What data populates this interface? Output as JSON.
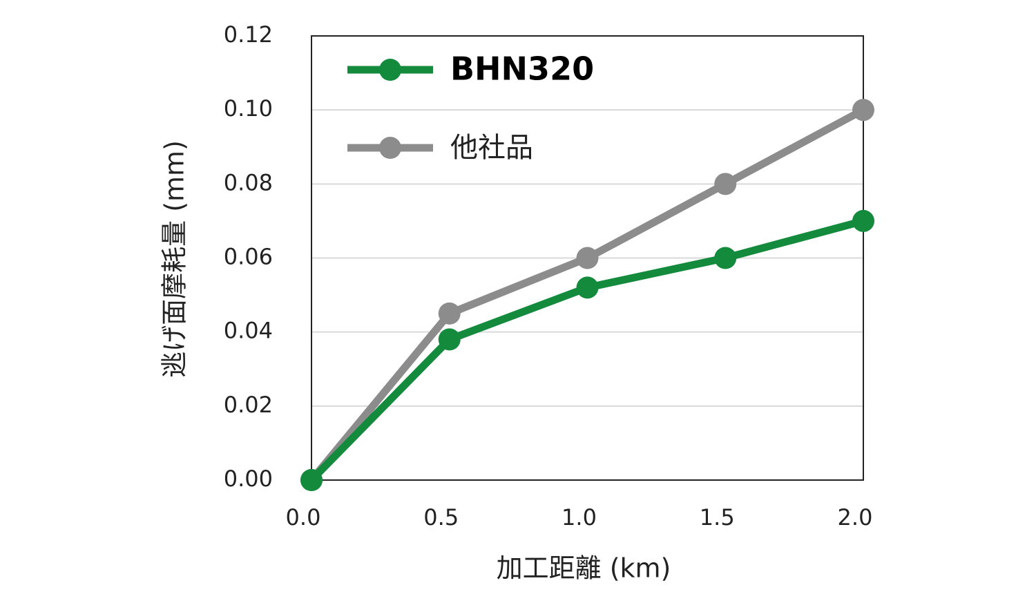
{
  "chart_data": {
    "type": "line",
    "x_label": "加工距離 (km)",
    "y_label": "逃げ面摩耗量 (mm)",
    "x": [
      0,
      0.5,
      1.0,
      1.5,
      2.0
    ],
    "series": [
      {
        "name": "BHN320",
        "color": "#138a3c",
        "values": [
          0,
          0.038,
          0.052,
          0.06,
          0.07
        ]
      },
      {
        "name": "他社品",
        "color": "#8c8c8c",
        "values": [
          0,
          0.045,
          0.06,
          0.08,
          0.1
        ]
      }
    ],
    "xlim": [
      0,
      2.0
    ],
    "ylim": [
      0,
      0.12
    ],
    "xticks": [
      {
        "value": 0,
        "label": "0.0"
      },
      {
        "value": 0.5,
        "label": "0.5"
      },
      {
        "value": 1.0,
        "label": "1.0"
      },
      {
        "value": 1.5,
        "label": "1.5"
      },
      {
        "value": 2.0,
        "label": "2.0"
      }
    ],
    "yticks": [
      {
        "value": 0,
        "label": "0.00"
      },
      {
        "value": 0.02,
        "label": "0.02"
      },
      {
        "value": 0.04,
        "label": "0.04"
      },
      {
        "value": 0.06,
        "label": "0.06"
      },
      {
        "value": 0.08,
        "label": "0.08"
      },
      {
        "value": 0.1,
        "label": "0.10"
      },
      {
        "value": 0.12,
        "label": "0.12"
      }
    ],
    "grid": true,
    "legend": "upper left"
  }
}
